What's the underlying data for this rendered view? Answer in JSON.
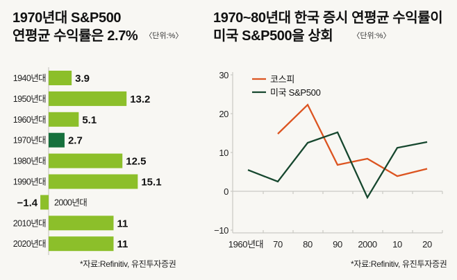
{
  "left_panel": {
    "title_line1": "1970년대 S&P500",
    "title_line2": "연평균 수익률은 2.7%",
    "unit": "〈단위:%〉",
    "source": "*자료:Refinitiv, 유진투자증권"
  },
  "right_panel": {
    "title_line1": "1970~80년대 한국 증시 연평균 수익률이",
    "title_line2": "미국 S&P500을 상회",
    "unit": "〈단위:%〉",
    "source": "*자료:Refinitiv, 유진투자증권"
  },
  "colors": {
    "background": "#f8f7f3",
    "bar": "#8cbf2a",
    "bar_highlight": "#16703c",
    "axis": "#c9c9c4",
    "kospi": "#dc5420",
    "sp500": "#16472e"
  },
  "chart_data": [
    {
      "type": "bar",
      "orientation": "horizontal",
      "title": "1970년대 S&P500 연평균 수익률은 2.7%",
      "unit": "%",
      "categories": [
        "1940년대",
        "1950년대",
        "1960년대",
        "1970년대",
        "1980년대",
        "1990년대",
        "2000년대",
        "2010년대",
        "2020년대"
      ],
      "values": [
        3.9,
        13.2,
        5.1,
        2.7,
        12.5,
        15.1,
        -1.4,
        11,
        11
      ],
      "value_labels": [
        "3.9",
        "13.2",
        "5.1",
        "2.7",
        "12.5",
        "15.1",
        "−1.4",
        "11",
        "11"
      ],
      "highlight": "1970년대",
      "xlabel": "",
      "ylabel": "",
      "grid": false
    },
    {
      "type": "line",
      "title": "1970~80년대 한국 증시 연평균 수익률이 미국 S&P500을 상회",
      "unit": "%",
      "x": [
        "1960년대",
        "70",
        "80",
        "90",
        "2000",
        "10",
        "20"
      ],
      "series": [
        {
          "name": "코스피",
          "values": [
            null,
            14.8,
            22.3,
            6.8,
            8.4,
            3.9,
            5.8
          ]
        },
        {
          "name": "미국 S&P500",
          "values": [
            5.5,
            2.5,
            12.5,
            15.2,
            -1.6,
            11.2,
            12.7
          ]
        }
      ],
      "ylim": [
        -10,
        30
      ],
      "yticks": [
        30,
        20,
        10,
        0,
        -10
      ],
      "ytick_labels": [
        "30",
        "20",
        "10",
        "0",
        "−10"
      ],
      "legend": "top-left",
      "grid": false,
      "xlabel": "",
      "ylabel": ""
    }
  ]
}
